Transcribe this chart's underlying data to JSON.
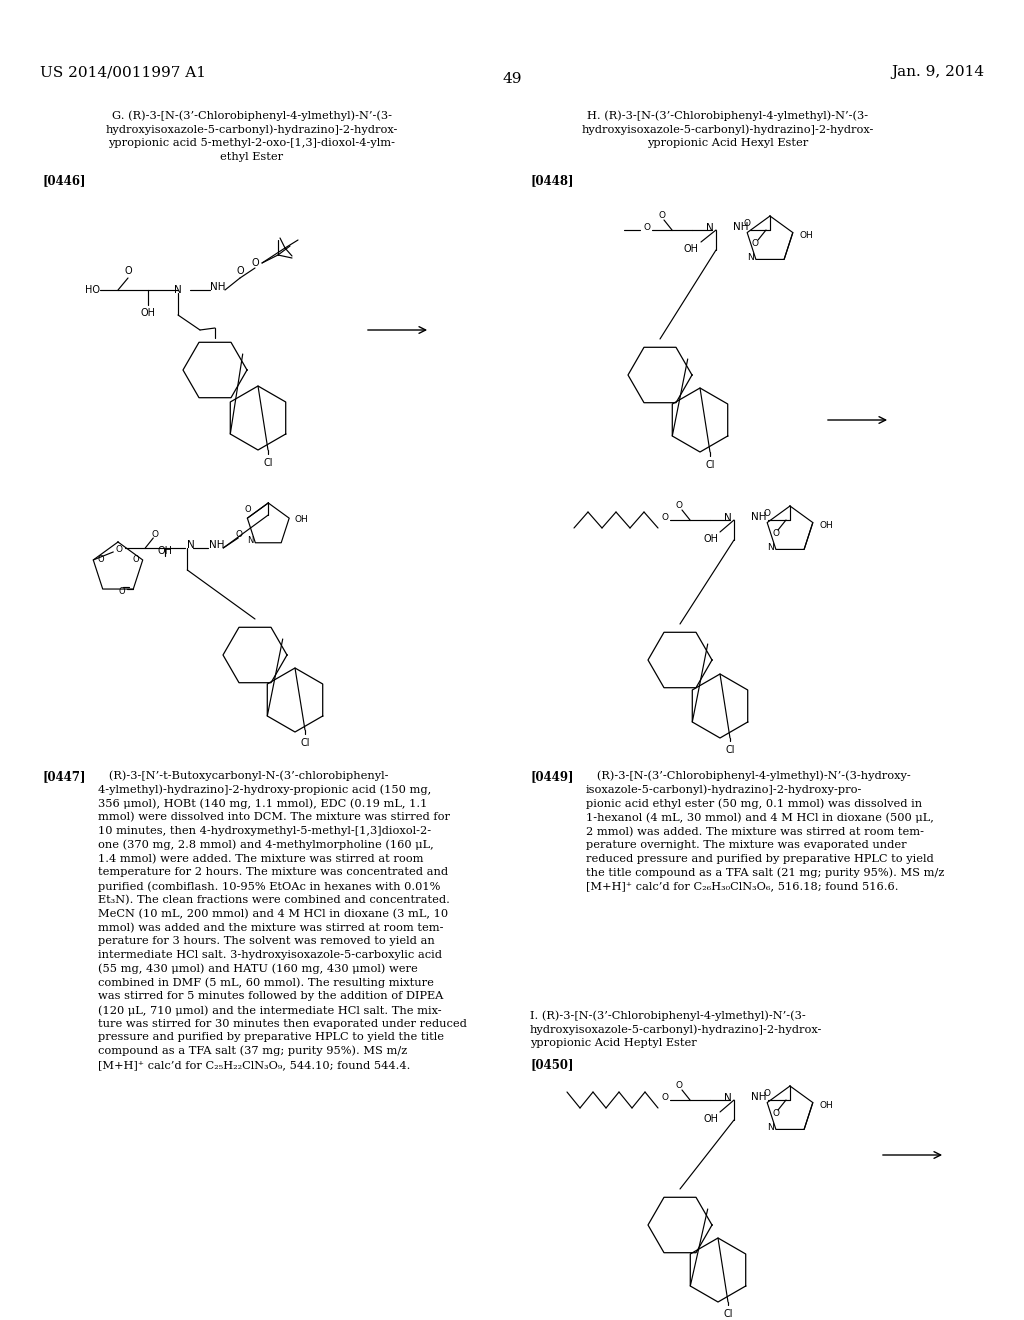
{
  "bg": "#ffffff",
  "header_left": "US 2014/0011997 A1",
  "header_right": "Jan. 9, 2014",
  "page_num": "49",
  "g_title_line1": "G. (R)-3-[N-(3’-Chlorobiphenyl-4-ylmethyl)-N’-(3-",
  "g_title_line2": "hydroxyisoxazole-5-carbonyl)-hydrazino]-2-hydrox-",
  "g_title_line3": "ypropionic acid 5-methyl-2-oxo-[1,3]-dioxol-4-ylm-",
  "g_title_line4": "ethyl Ester",
  "h_title_line1": "H. (R)-3-[N-(3’-Chlorobiphenyl-4-ylmethyl)-N’-(3-",
  "h_title_line2": "hydroxyisoxazole-5-carbonyl)-hydrazino]-2-hydrox-",
  "h_title_line3": "ypropionic Acid Hexyl Ester",
  "i_title_line1": "I. (R)-3-[N-(3’-Chlorobiphenyl-4-ylmethyl)-N’-(3-",
  "i_title_line2": "hydroxyisoxazole-5-carbonyl)-hydrazino]-2-hydrox-",
  "i_title_line3": "ypropionic Acid Heptyl Ester",
  "tag0446": "[0446]",
  "tag0447": "[0447]",
  "tag0448": "[0448]",
  "tag0449": "[0449]",
  "tag0450": "[0450]",
  "body0447_tag": "[0447]",
  "body0447": "   (R)-3-[N’-t-Butoxycarbonyl-N-(3’-chlorobiphenyl-\n4-ylmethyl)-hydrazino]-2-hydroxy-propionic acid (150 mg,\n356 μmol), HOBt (140 mg, 1.1 mmol), EDC (0.19 mL, 1.1\nmmol) were dissolved into DCM. The mixture was stirred for\n10 minutes, then 4-hydroxymethyl-5-methyl-[1,3]dioxol-2-\none (370 mg, 2.8 mmol) and 4-methylmorpholine (160 μL,\n1.4 mmol) were added. The mixture was stirred at room\ntemperature for 2 hours. The mixture was concentrated and\npurified (combiflash. 10-95% EtOAc in hexanes with 0.01%\nEt₃N). The clean fractions were combined and concentrated.\nMeCN (10 mL, 200 mmol) and 4 M HCl in dioxane (3 mL, 10\nmmol) was added and the mixture was stirred at room tem-\nperature for 3 hours. The solvent was removed to yield an\nintermediate HCl salt. 3-hydroxyisoxazole-5-carboxylic acid\n(55 mg, 430 μmol) and HATU (160 mg, 430 μmol) were\ncombined in DMF (5 mL, 60 mmol). The resulting mixture\nwas stirred for 5 minutes followed by the addition of DIPEA\n(120 μL, 710 μmol) and the intermediate HCl salt. The mix-\nture was stirred for 30 minutes then evaporated under reduced\npressure and purified by preparative HPLC to yield the title\ncompound as a TFA salt (37 mg; purity 95%). MS m/z\n[M+H]⁺ calc’d for C₂₅H₂₂ClN₃O₉, 544.10; found 544.4.",
  "body0449_tag": "[0449]",
  "body0449": "   (R)-3-[N-(3’-Chlorobiphenyl-4-ylmethyl)-N’-(3-hydroxy-\nisoxazole-5-carbonyl)-hydrazino]-2-hydroxy-pro-\npionic acid ethyl ester (50 mg, 0.1 mmol) was dissolved in\n1-hexanol (4 mL, 30 mmol) and 4 M HCl in dioxane (500 μL,\n2 mmol) was added. The mixture was stirred at room tem-\nperature overnight. The mixture was evaporated under\nreduced pressure and purified by preparative HPLC to yield\nthe title compound as a TFA salt (21 mg; purity 95%). MS m/z\n[M+H]⁺ calc’d for C₂₆H₃₀ClN₃O₆, 516.18; found 516.6."
}
